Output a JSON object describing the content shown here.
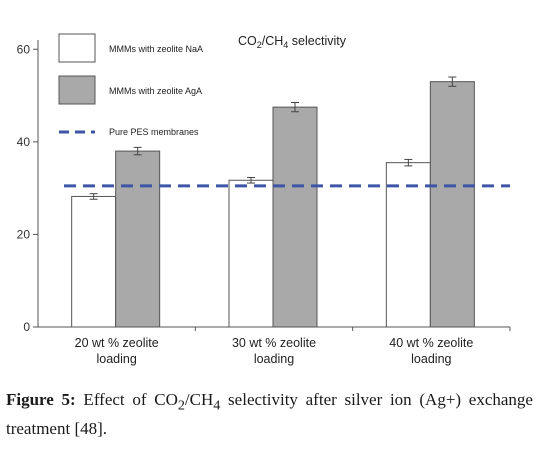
{
  "chart_data": {
    "type": "bar",
    "title": "CO2/CH4 selectivity",
    "title_parts": {
      "a": "CO",
      "a_sub": "2",
      "b": "/CH",
      "b_sub": "4",
      "c": " selectivity"
    },
    "categories": [
      [
        "20 wt % zeolite",
        "loading"
      ],
      [
        "30 wt % zeolite",
        "loading"
      ],
      [
        "40 wt % zeolite",
        "loading"
      ]
    ],
    "series": [
      {
        "name": "MMMs with zeolite NaA",
        "color": "#ffffff",
        "values": [
          28.2,
          31.7,
          35.5
        ],
        "errors": [
          0.6,
          0.6,
          0.7
        ]
      },
      {
        "name": "MMMs with zeolite AgA",
        "color": "#a9a9a9",
        "values": [
          38.0,
          47.5,
          53.0
        ],
        "errors": [
          0.8,
          1.0,
          1.0
        ]
      }
    ],
    "reference_line": {
      "name": "Pure PES membranes",
      "value": 30.5,
      "color": "#3f55a8",
      "style": "dashed"
    },
    "yticks": [
      0,
      20,
      40,
      60
    ],
    "ylim": [
      0,
      62
    ],
    "legend_position": "top-left",
    "grid": false
  },
  "caption": {
    "label": "Figure 5:",
    "text_a": " Effect of CO",
    "sub_a": "2",
    "text_b": "/CH",
    "sub_b": "4",
    "text_c": " selectivity after silver ion (Ag+) exchange treatment [48]."
  }
}
